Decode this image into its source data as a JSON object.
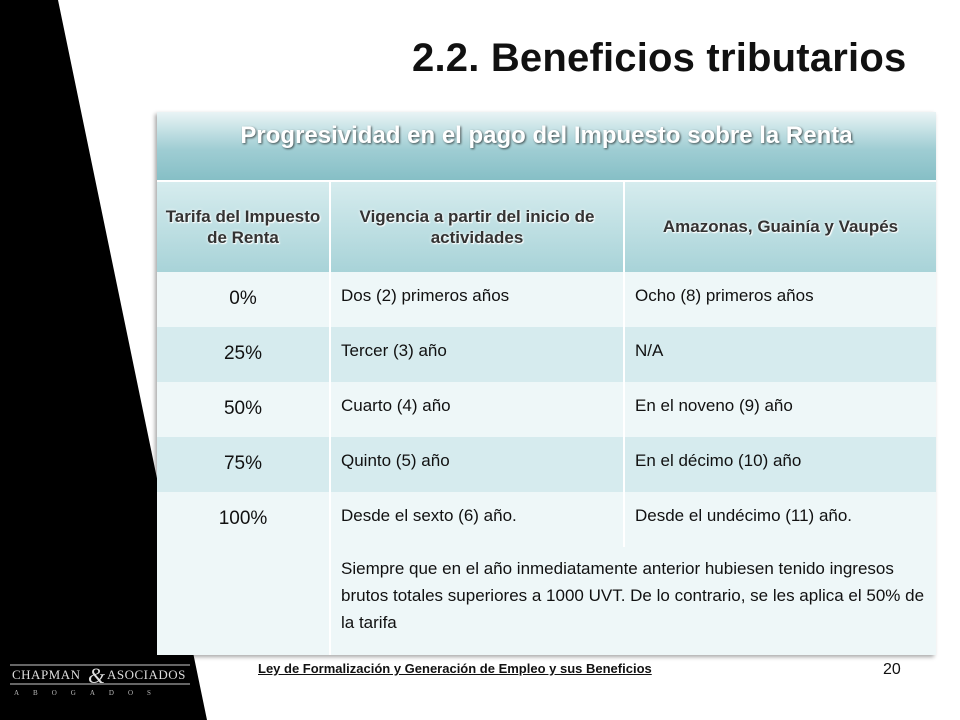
{
  "slide": {
    "title": "2.2. Beneficios tributarios",
    "page_number": "20",
    "footer_link": "Ley de Formalización y Generación de Empleo y sus Beneficios"
  },
  "logo": {
    "name": "CHAPMAN & ASOCIADOS",
    "sub": "A B O G A D O S"
  },
  "table": {
    "heading": "Progresividad en el pago del Impuesto sobre la Renta",
    "columns": [
      "Tarifa del Impuesto de Renta",
      "Vigencia a partir del inicio de actividades",
      "Amazonas, Guainía y Vaupés"
    ],
    "rows": [
      {
        "tarifa": "0%",
        "vigencia": "Dos (2) primeros años",
        "region": "Ocho (8) primeros años"
      },
      {
        "tarifa": "25%",
        "vigencia": "Tercer (3) año",
        "region": "N/A"
      },
      {
        "tarifa": "50%",
        "vigencia": "Cuarto (4) año",
        "region": "En el noveno (9) año"
      },
      {
        "tarifa": "75%",
        "vigencia": "Quinto (5) año",
        "region": "En el décimo (10) año"
      },
      {
        "tarifa": "100%",
        "vigencia": "Desde el sexto (6) año.",
        "region": "Desde el undécimo (11) año."
      }
    ],
    "note": "Siempre que en el año inmediatamente anterior hubiesen tenido ingresos brutos totales superiores a 1000 UVT. De lo contrario, se les aplica el 50% de la tarifa"
  }
}
